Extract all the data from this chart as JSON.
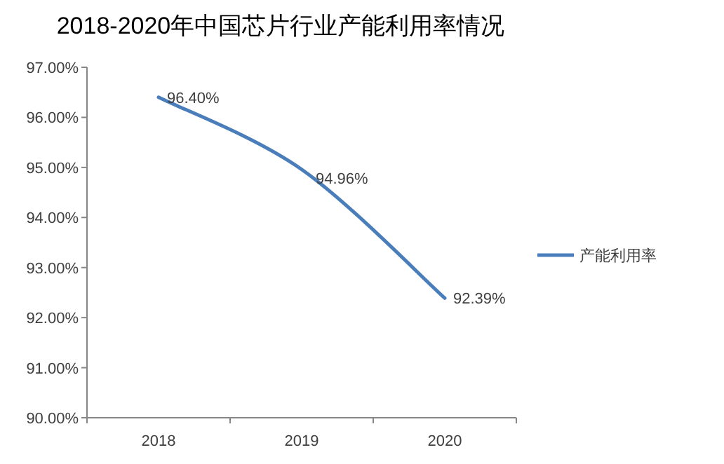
{
  "chart_data": {
    "type": "line",
    "title": "2018-2020年中国芯片行业产能利用率情况",
    "categories": [
      "2018",
      "2019",
      "2020"
    ],
    "series": [
      {
        "name": "产能利用率",
        "color": "#4a7ebb",
        "values": [
          96.4,
          94.96,
          92.39
        ],
        "value_labels": [
          "96.40%",
          "94.96%",
          "92.39%"
        ]
      }
    ],
    "ylim": [
      90,
      97
    ],
    "yticks": [
      {
        "value": 90,
        "label": "90.00%"
      },
      {
        "value": 91,
        "label": "91.00%"
      },
      {
        "value": 92,
        "label": "92.00%"
      },
      {
        "value": 93,
        "label": "93.00%"
      },
      {
        "value": 94,
        "label": "94.00%"
      },
      {
        "value": 95,
        "label": "95.00%"
      },
      {
        "value": 96,
        "label": "96.00%"
      },
      {
        "value": 97,
        "label": "97.00%"
      }
    ],
    "legend": "right",
    "marker": "none",
    "line_style": "solid",
    "grid": false
  }
}
